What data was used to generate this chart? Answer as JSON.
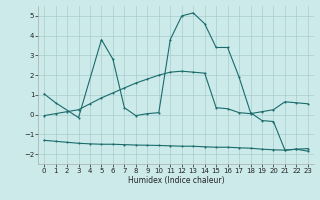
{
  "top_x": [
    0,
    1,
    3,
    5,
    6,
    7,
    8,
    9,
    10,
    11,
    12,
    13,
    14,
    15,
    16,
    17,
    18,
    19,
    20,
    21,
    22,
    23
  ],
  "top_y": [
    1.05,
    0.6,
    -0.15,
    3.8,
    2.8,
    0.35,
    -0.05,
    0.05,
    0.1,
    3.8,
    5.0,
    5.15,
    4.6,
    3.4,
    3.4,
    1.9,
    0.1,
    -0.3,
    -0.35,
    -1.8,
    -1.75,
    -1.85
  ],
  "mid_x": [
    0,
    1,
    2,
    3,
    4,
    5,
    6,
    7,
    8,
    9,
    10,
    11,
    12,
    13,
    14,
    15,
    16,
    17,
    18,
    19,
    20,
    21,
    22,
    23
  ],
  "mid_y": [
    -0.05,
    0.05,
    0.15,
    0.25,
    0.55,
    0.85,
    1.1,
    1.35,
    1.6,
    1.8,
    2.0,
    2.15,
    2.2,
    2.15,
    2.1,
    0.35,
    0.3,
    0.1,
    0.05,
    0.15,
    0.25,
    0.65,
    0.6,
    0.55
  ],
  "bot_x": [
    0,
    1,
    2,
    3,
    4,
    5,
    6,
    7,
    8,
    9,
    10,
    11,
    12,
    13,
    14,
    15,
    16,
    17,
    18,
    19,
    20,
    21,
    22,
    23
  ],
  "bot_y": [
    -1.3,
    -1.35,
    -1.4,
    -1.45,
    -1.48,
    -1.5,
    -1.5,
    -1.52,
    -1.54,
    -1.55,
    -1.56,
    -1.58,
    -1.6,
    -1.6,
    -1.63,
    -1.65,
    -1.65,
    -1.68,
    -1.7,
    -1.75,
    -1.78,
    -1.8,
    -1.75,
    -1.72
  ],
  "color": "#1a6b6b",
  "bg_color": "#cceaea",
  "grid_color": "#aacccc",
  "xlabel": "Humidex (Indice chaleur)",
  "ylim": [
    -2.5,
    5.5
  ],
  "xlim": [
    -0.5,
    23.5
  ],
  "yticks": [
    -2,
    -1,
    0,
    1,
    2,
    3,
    4,
    5
  ],
  "xticks": [
    0,
    1,
    2,
    3,
    4,
    5,
    6,
    7,
    8,
    9,
    10,
    11,
    12,
    13,
    14,
    15,
    16,
    17,
    18,
    19,
    20,
    21,
    22,
    23
  ]
}
